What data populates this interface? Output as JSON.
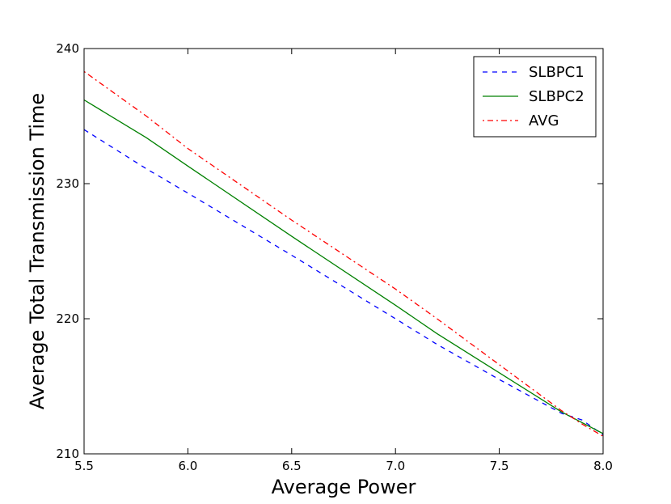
{
  "chart_data": {
    "type": "line",
    "xlabel": "Average Power",
    "ylabel": "Average Total Transmission Time",
    "xlim": [
      5.5,
      8.0
    ],
    "ylim": [
      210,
      240
    ],
    "x_ticks": [
      "5.5",
      "6.0",
      "6.5",
      "7.0",
      "7.5",
      "8.0"
    ],
    "y_ticks": [
      "210",
      "220",
      "230",
      "240"
    ],
    "grid": false,
    "legend_position": "top-right",
    "x": [
      5.5,
      5.8,
      6.0,
      6.5,
      7.0,
      7.2,
      7.5,
      7.8,
      7.9,
      8.0
    ],
    "series": [
      {
        "name": "SLBPC1",
        "color": "#0000ff",
        "style": "dashed",
        "values": [
          234.0,
          231.1,
          229.3,
          224.7,
          220.0,
          218.1,
          215.5,
          213.0,
          212.5,
          211.4
        ]
      },
      {
        "name": "SLBPC2",
        "color": "#008000",
        "style": "solid",
        "values": [
          236.2,
          233.4,
          231.3,
          226.1,
          221.0,
          218.9,
          216.0,
          213.1,
          212.3,
          211.5
        ]
      },
      {
        "name": "AVG",
        "color": "#ff0000",
        "style": "dashdot",
        "values": [
          238.3,
          235.0,
          232.6,
          227.3,
          222.2,
          220.0,
          216.6,
          213.2,
          212.2,
          211.3
        ]
      }
    ]
  }
}
